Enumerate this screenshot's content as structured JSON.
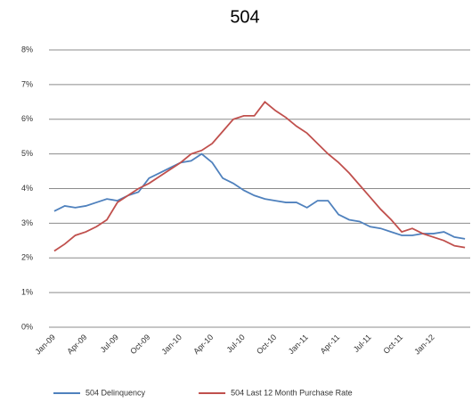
{
  "chart_data": {
    "type": "line",
    "title": "504",
    "categories": [
      "Jan-09",
      null,
      null,
      "Apr-09",
      null,
      null,
      "Jul-09",
      null,
      null,
      "Oct-09",
      null,
      null,
      "Jan-10",
      null,
      null,
      "Apr-10",
      null,
      null,
      "Jul-10",
      null,
      null,
      "Oct-10",
      null,
      null,
      "Jan-11",
      null,
      null,
      "Apr-11",
      null,
      null,
      "Jul-11",
      null,
      null,
      "Oct-11",
      null,
      null,
      "Jan-12",
      null,
      null,
      null
    ],
    "series": [
      {
        "name": "504 Delinquency",
        "color": "#4f81bd",
        "values": [
          3.35,
          3.5,
          3.45,
          3.5,
          3.6,
          3.7,
          3.65,
          3.8,
          3.9,
          4.3,
          4.45,
          4.6,
          4.75,
          4.8,
          5.0,
          4.75,
          4.3,
          4.15,
          3.95,
          3.8,
          3.7,
          3.65,
          3.6,
          3.6,
          3.45,
          3.65,
          3.65,
          3.25,
          3.1,
          3.05,
          2.9,
          2.85,
          2.75,
          2.65,
          2.65,
          2.7,
          2.7,
          2.75,
          2.6,
          2.55
        ]
      },
      {
        "name": "504 Last 12 Month Purchase Rate",
        "color": "#c0504d",
        "values": [
          2.2,
          2.4,
          2.65,
          2.75,
          2.9,
          3.1,
          3.6,
          3.8,
          4.0,
          4.15,
          4.35,
          4.55,
          4.75,
          5.0,
          5.1,
          5.3,
          5.65,
          6.0,
          6.1,
          6.1,
          6.5,
          6.25,
          6.05,
          5.8,
          5.6,
          5.3,
          5.0,
          4.75,
          4.45,
          4.1,
          3.75,
          3.4,
          3.1,
          2.75,
          2.85,
          2.7,
          2.6,
          2.5,
          2.35,
          2.3
        ]
      }
    ],
    "ylim": [
      0,
      8
    ],
    "yticks": [
      {
        "value": 0,
        "label": "0%"
      },
      {
        "value": 1,
        "label": "1%"
      },
      {
        "value": 2,
        "label": "2%"
      },
      {
        "value": 3,
        "label": "3%"
      },
      {
        "value": 4,
        "label": "4%"
      },
      {
        "value": 5,
        "label": "5%"
      },
      {
        "value": 6,
        "label": "6%"
      },
      {
        "value": 7,
        "label": "7%"
      },
      {
        "value": 8,
        "label": "8%"
      }
    ],
    "grid": true,
    "legend": "bottom"
  }
}
